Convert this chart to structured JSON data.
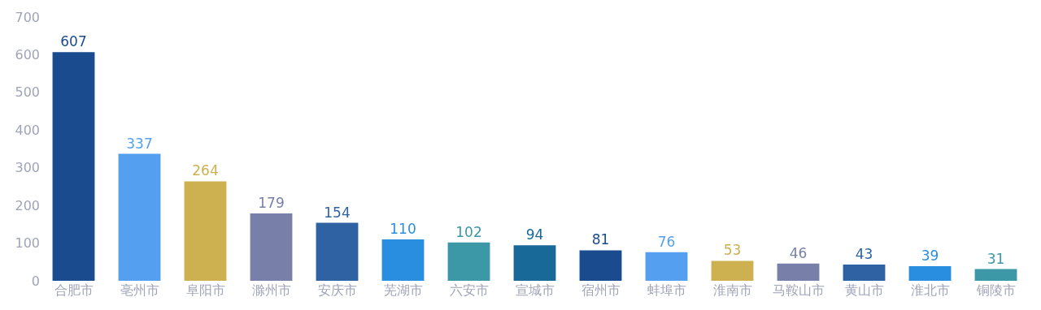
{
  "chart_data": {
    "type": "bar",
    "categories": [
      "合肥市",
      "亳州市",
      "阜阳市",
      "滁州市",
      "安庆市",
      "芜湖市",
      "六安市",
      "宣城市",
      "宿州市",
      "蚌埠市",
      "淮南市",
      "马鞍山市",
      "黄山市",
      "淮北市",
      "铜陵市"
    ],
    "values": [
      607,
      337,
      264,
      179,
      154,
      110,
      102,
      94,
      81,
      76,
      53,
      46,
      43,
      39,
      31
    ],
    "colors": [
      "#1a4b8e",
      "#559ff0",
      "#cdb050",
      "#7880aa",
      "#2f62a2",
      "#2a8ee0",
      "#3c98a6",
      "#186898",
      "#1a4b8e",
      "#559ff0",
      "#cdb050",
      "#7880aa",
      "#2f62a2",
      "#2a8ee0",
      "#3c98a6"
    ],
    "ylim": [
      0,
      700
    ],
    "yticks": [
      0,
      100,
      200,
      300,
      400,
      500,
      600,
      700
    ],
    "data_labels": true
  }
}
